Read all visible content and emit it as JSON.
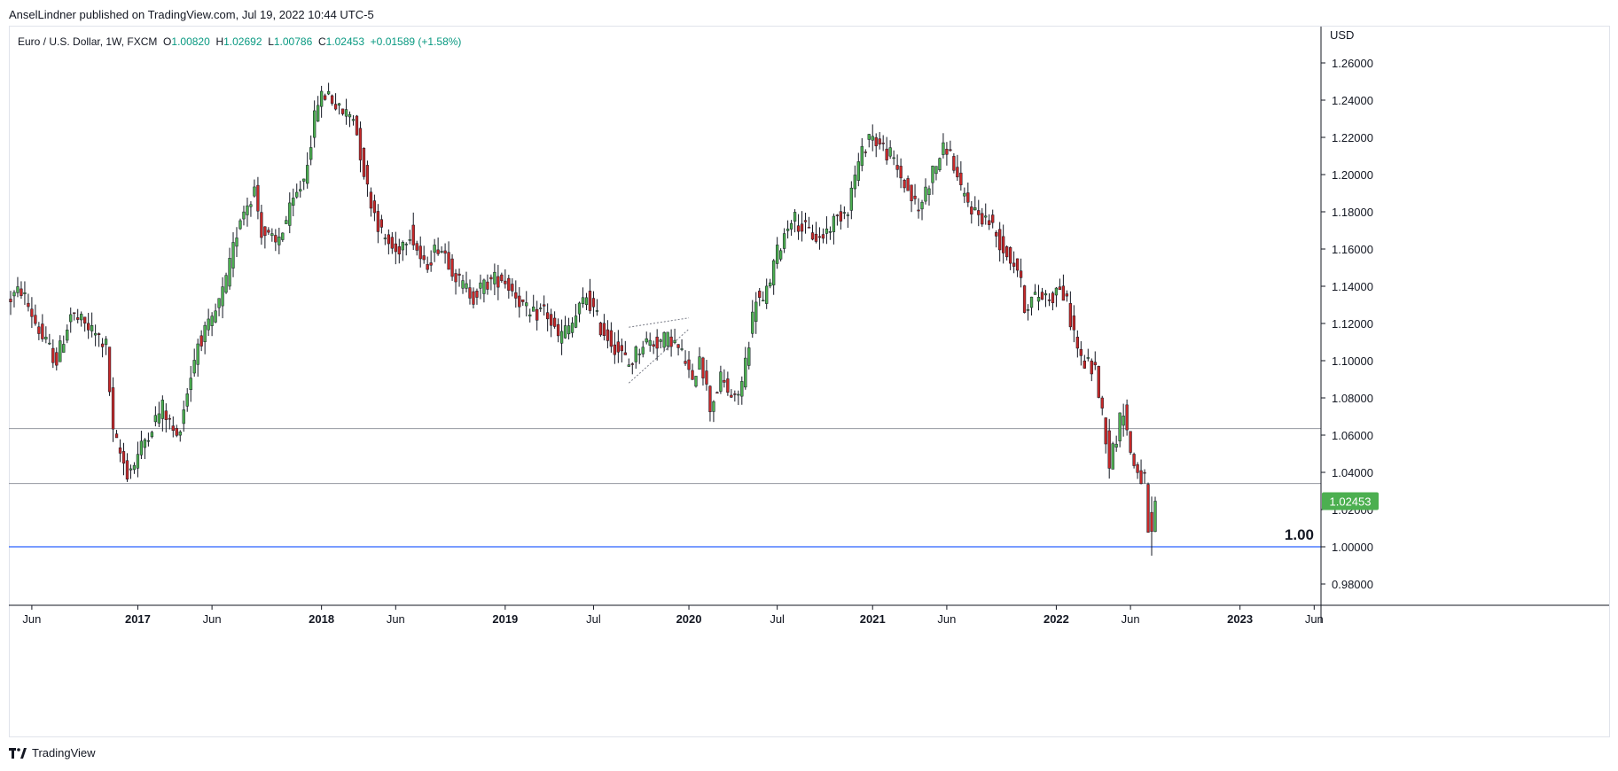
{
  "header": {
    "publish_line": "AnselLindner published on TradingView.com, Jul 19, 2022 10:44 UTC-5"
  },
  "legend": {
    "symbol": "Euro / U.S. Dollar, 1W, FXCM",
    "o_label": "O",
    "o_value": "1.00820",
    "h_label": "H",
    "h_value": "1.02692",
    "l_label": "L",
    "l_value": "1.00786",
    "c_label": "C",
    "c_value": "1.02453",
    "change": "+0.01589 (+1.58%)"
  },
  "footer": {
    "brand": "TradingView"
  },
  "colors": {
    "up": "#089981",
    "down": "#f23645",
    "candle_up": "#4caf50",
    "candle_down": "#c62828",
    "wick": "#131722",
    "support": "#9598a1",
    "parity": "#2962ff",
    "price_tag": "#4caf50"
  },
  "chart_data": {
    "type": "candlestick",
    "currency": "USD",
    "ylim": [
      0.965,
      1.275
    ],
    "y_ticks": [
      "1.26000",
      "1.24000",
      "1.22000",
      "1.20000",
      "1.18000",
      "1.16000",
      "1.14000",
      "1.12000",
      "1.10000",
      "1.08000",
      "1.06000",
      "1.04000",
      "1.02000",
      "1.00000",
      "0.98000"
    ],
    "y_tick_values": [
      1.26,
      1.24,
      1.22,
      1.2,
      1.18,
      1.16,
      1.14,
      1.12,
      1.1,
      1.08,
      1.06,
      1.04,
      1.02,
      1.0,
      0.98
    ],
    "x_ticks": [
      {
        "label": "Jun",
        "week": 6,
        "bold": false
      },
      {
        "label": "2017",
        "week": 36,
        "bold": true
      },
      {
        "label": "Jun",
        "week": 57,
        "bold": false
      },
      {
        "label": "2018",
        "week": 88,
        "bold": true
      },
      {
        "label": "Jun",
        "week": 109,
        "bold": false
      },
      {
        "label": "2019",
        "week": 140,
        "bold": true
      },
      {
        "label": "Jul",
        "week": 165,
        "bold": false
      },
      {
        "label": "2020",
        "week": 192,
        "bold": true
      },
      {
        "label": "Jul",
        "week": 217,
        "bold": false
      },
      {
        "label": "2021",
        "week": 244,
        "bold": true
      },
      {
        "label": "Jun",
        "week": 265,
        "bold": false
      },
      {
        "label": "2022",
        "week": 296,
        "bold": true
      },
      {
        "label": "Jun",
        "week": 317,
        "bold": false
      },
      {
        "label": "2023",
        "week": 348,
        "bold": true
      },
      {
        "label": "Jun",
        "week": 369,
        "bold": false
      }
    ],
    "week_range": [
      -0.5,
      373
    ],
    "last_price": "1.02453",
    "last_price_value": 1.02453,
    "horizontal_lines": [
      {
        "name": "support-1",
        "value": 1.0635
      },
      {
        "name": "support-2",
        "value": 1.034
      },
      {
        "name": "parity",
        "value": 1.0,
        "label": "1.00"
      }
    ],
    "triangle": [
      [
        175,
        1.118
      ],
      [
        192,
        1.123
      ],
      [
        175,
        1.088
      ],
      [
        192,
        1.117
      ]
    ],
    "keypoints": [
      [
        0,
        1.132
      ],
      [
        4,
        1.138
      ],
      [
        10,
        1.112
      ],
      [
        14,
        1.1
      ],
      [
        18,
        1.125
      ],
      [
        24,
        1.116
      ],
      [
        28,
        1.108
      ],
      [
        30,
        1.06
      ],
      [
        34,
        1.04
      ],
      [
        36,
        1.045
      ],
      [
        40,
        1.062
      ],
      [
        44,
        1.075
      ],
      [
        48,
        1.058
      ],
      [
        50,
        1.075
      ],
      [
        54,
        1.11
      ],
      [
        58,
        1.12
      ],
      [
        62,
        1.142
      ],
      [
        66,
        1.178
      ],
      [
        70,
        1.192
      ],
      [
        72,
        1.17
      ],
      [
        76,
        1.162
      ],
      [
        80,
        1.18
      ],
      [
        84,
        1.198
      ],
      [
        88,
        1.24
      ],
      [
        91,
        1.244
      ],
      [
        94,
        1.234
      ],
      [
        98,
        1.232
      ],
      [
        102,
        1.192
      ],
      [
        106,
        1.168
      ],
      [
        110,
        1.158
      ],
      [
        114,
        1.17
      ],
      [
        118,
        1.15
      ],
      [
        122,
        1.162
      ],
      [
        124,
        1.158
      ],
      [
        128,
        1.142
      ],
      [
        132,
        1.135
      ],
      [
        136,
        1.142
      ],
      [
        140,
        1.145
      ],
      [
        144,
        1.136
      ],
      [
        148,
        1.123
      ],
      [
        152,
        1.128
      ],
      [
        156,
        1.112
      ],
      [
        160,
        1.12
      ],
      [
        164,
        1.135
      ],
      [
        168,
        1.118
      ],
      [
        172,
        1.108
      ],
      [
        176,
        1.098
      ],
      [
        180,
        1.11
      ],
      [
        184,
        1.11
      ],
      [
        188,
        1.112
      ],
      [
        192,
        1.1
      ],
      [
        194,
        1.086
      ],
      [
        196,
        1.105
      ],
      [
        199,
        1.075
      ],
      [
        202,
        1.09
      ],
      [
        206,
        1.078
      ],
      [
        208,
        1.088
      ],
      [
        212,
        1.135
      ],
      [
        214,
        1.13
      ],
      [
        218,
        1.158
      ],
      [
        222,
        1.178
      ],
      [
        226,
        1.17
      ],
      [
        230,
        1.165
      ],
      [
        234,
        1.175
      ],
      [
        238,
        1.183
      ],
      [
        240,
        1.2
      ],
      [
        244,
        1.222
      ],
      [
        246,
        1.218
      ],
      [
        250,
        1.21
      ],
      [
        254,
        1.195
      ],
      [
        258,
        1.18
      ],
      [
        260,
        1.192
      ],
      [
        264,
        1.21
      ],
      [
        266,
        1.215
      ],
      [
        268,
        1.205
      ],
      [
        270,
        1.19
      ],
      [
        274,
        1.18
      ],
      [
        278,
        1.175
      ],
      [
        282,
        1.16
      ],
      [
        286,
        1.15
      ],
      [
        288,
        1.13
      ],
      [
        292,
        1.135
      ],
      [
        296,
        1.135
      ],
      [
        298,
        1.14
      ],
      [
        300,
        1.13
      ],
      [
        302,
        1.115
      ],
      [
        304,
        1.1
      ],
      [
        308,
        1.095
      ],
      [
        311,
        1.06
      ],
      [
        312,
        1.045
      ],
      [
        314,
        1.06
      ],
      [
        316,
        1.075
      ],
      [
        318,
        1.05
      ],
      [
        320,
        1.04
      ],
      [
        322,
        1.035
      ],
      [
        323,
        1.005
      ],
      [
        324,
        1.024
      ]
    ]
  }
}
